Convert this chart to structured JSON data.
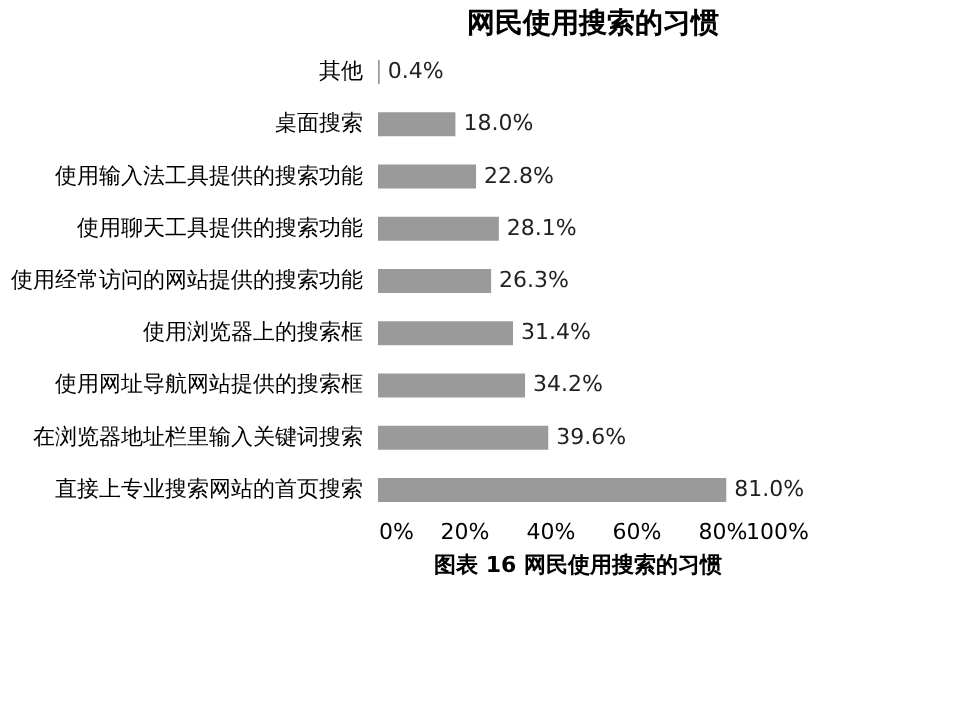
{
  "chart_data": {
    "type": "bar",
    "orientation": "horizontal",
    "title": "网民使用搜索的习惯",
    "categories": [
      "其他",
      "桌面搜索",
      "使用输入法工具提供的搜索功能",
      "使用聊天工具提供的搜索功能",
      "使用经常访问的网站提供的搜索功能",
      "使用浏览器上的搜索框",
      "使用网址导航网站提供的搜索框",
      "在浏览器地址栏里输入关键词搜索",
      "直接上专业搜索网站的首页搜索"
    ],
    "values": [
      0.4,
      18.0,
      22.8,
      28.1,
      26.3,
      31.4,
      34.2,
      39.6,
      81.0
    ],
    "value_labels": [
      "0.4%",
      "18.0%",
      "22.8%",
      "28.1%",
      "26.3%",
      "31.4%",
      "34.2%",
      "39.6%",
      "81.0%"
    ],
    "color": "#9a9a9a",
    "xlim": [
      0,
      100
    ],
    "xticks": [
      {
        "value": 0,
        "label": "0%"
      },
      {
        "value": 20,
        "label": "20%"
      },
      {
        "value": 40,
        "label": "40%"
      },
      {
        "value": 60,
        "label": "60%"
      },
      {
        "value": 80,
        "label": "80%"
      },
      {
        "value": 100,
        "label": "100%"
      }
    ],
    "grid": false,
    "annotations": [
      "图表 16 网民使用搜索的习惯"
    ]
  }
}
